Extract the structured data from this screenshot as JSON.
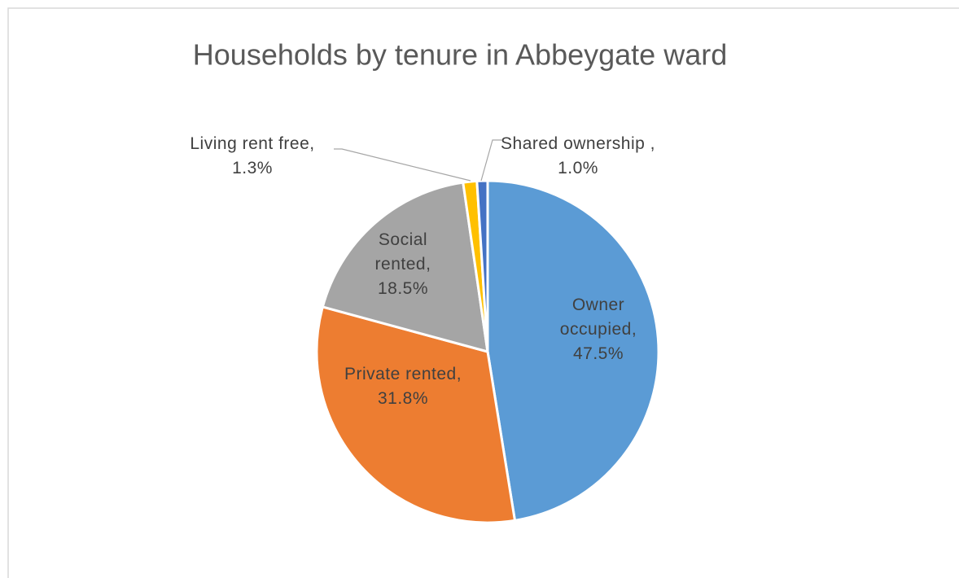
{
  "chart_data": {
    "type": "pie",
    "title": "Households by tenure in  Abbeygate ward",
    "categories": [
      "Owner occupied,",
      "Private rented,",
      "Social rented,",
      "Living rent free,",
      "Shared ownership ,"
    ],
    "values": [
      47.5,
      31.8,
      18.5,
      1.3,
      1.0
    ],
    "value_labels": [
      "47.5%",
      "31.8%",
      "18.5%",
      "1.3%",
      "1.0%"
    ],
    "colors": [
      "#5b9bd5",
      "#ed7d31",
      "#a5a5a5",
      "#ffc000",
      "#4472c4"
    ]
  }
}
